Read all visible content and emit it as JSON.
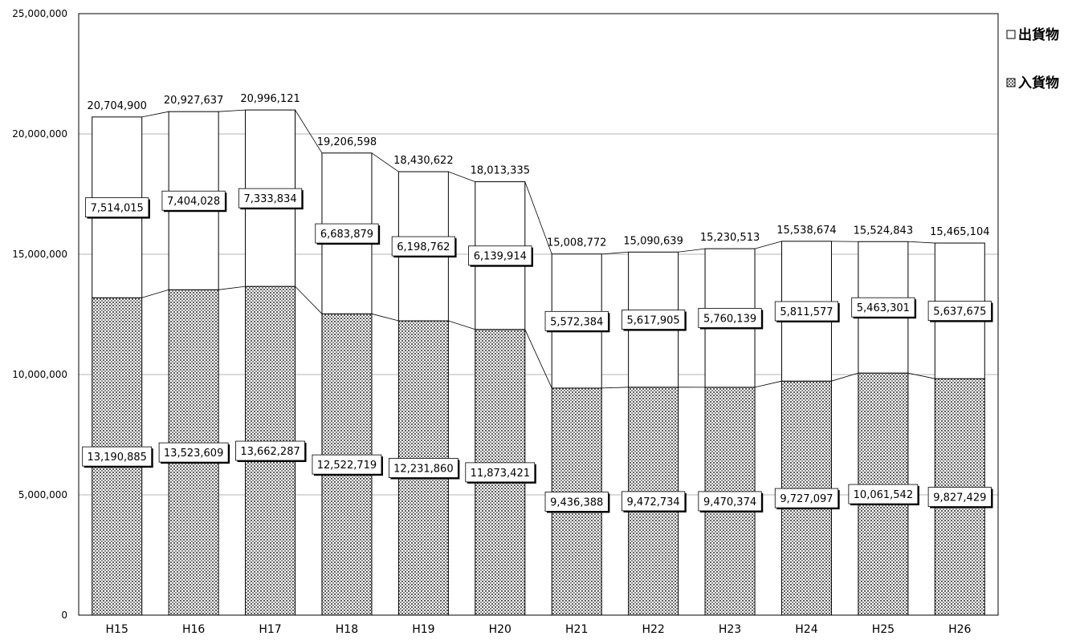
{
  "chart_data": {
    "type": "bar",
    "stacked": true,
    "categories": [
      "H15",
      "H16",
      "H17",
      "H18",
      "H19",
      "H20",
      "H21",
      "H22",
      "H23",
      "H24",
      "H25",
      "H26"
    ],
    "series": [
      {
        "name": "入貨物",
        "pattern": "dotted",
        "values": [
          13190885,
          13523609,
          13662287,
          12522719,
          12231860,
          11873421,
          9436388,
          9472734,
          9470374,
          9727097,
          10061542,
          9827429
        ]
      },
      {
        "name": "出貨物",
        "pattern": "plain",
        "values": [
          7514015,
          7404028,
          7333834,
          6683879,
          6198762,
          6139914,
          5572384,
          5617905,
          5760139,
          5811577,
          5463301,
          5637675
        ]
      }
    ],
    "totals": [
      20704900,
      20927637,
      20996121,
      19206598,
      18430622,
      18013335,
      15008772,
      15090639,
      15230513,
      15538674,
      15524843,
      15465104
    ],
    "value_labels": {
      "in": [
        "13,190,885",
        "13,523,609",
        "13,662,287",
        "12,522,719",
        "12,231,860",
        "11,873,421",
        "9,436,388",
        "9,472,734",
        "9,470,374",
        "9,727,097",
        "10,061,542",
        "9,827,429"
      ],
      "out": [
        "7,514,015",
        "7,404,028",
        "7,333,834",
        "6,683,879",
        "6,198,762",
        "6,139,914",
        "5,572,384",
        "5,617,905",
        "5,760,139",
        "5,811,577",
        "5,463,301",
        "5,637,675"
      ],
      "total": [
        "20,704,900",
        "20,927,637",
        "20,996,121",
        "19,206,598",
        "18,430,622",
        "18,013,335",
        "15,008,772",
        "15,090,639",
        "15,230,513",
        "15,538,674",
        "15,524,843",
        "15,465,104"
      ]
    },
    "y_ticks": [
      0,
      5000000,
      10000000,
      15000000,
      20000000,
      25000000
    ],
    "y_tick_labels": [
      "0",
      "5,000,000",
      "10,000,000",
      "15,000,000",
      "20,000,000",
      "25,000,000"
    ],
    "ylim": [
      0,
      25000000
    ],
    "grid": true,
    "legend": {
      "position": "top-right",
      "entries": [
        "出貨物",
        "入貨物"
      ]
    },
    "title": "",
    "xlabel": "",
    "ylabel": ""
  }
}
